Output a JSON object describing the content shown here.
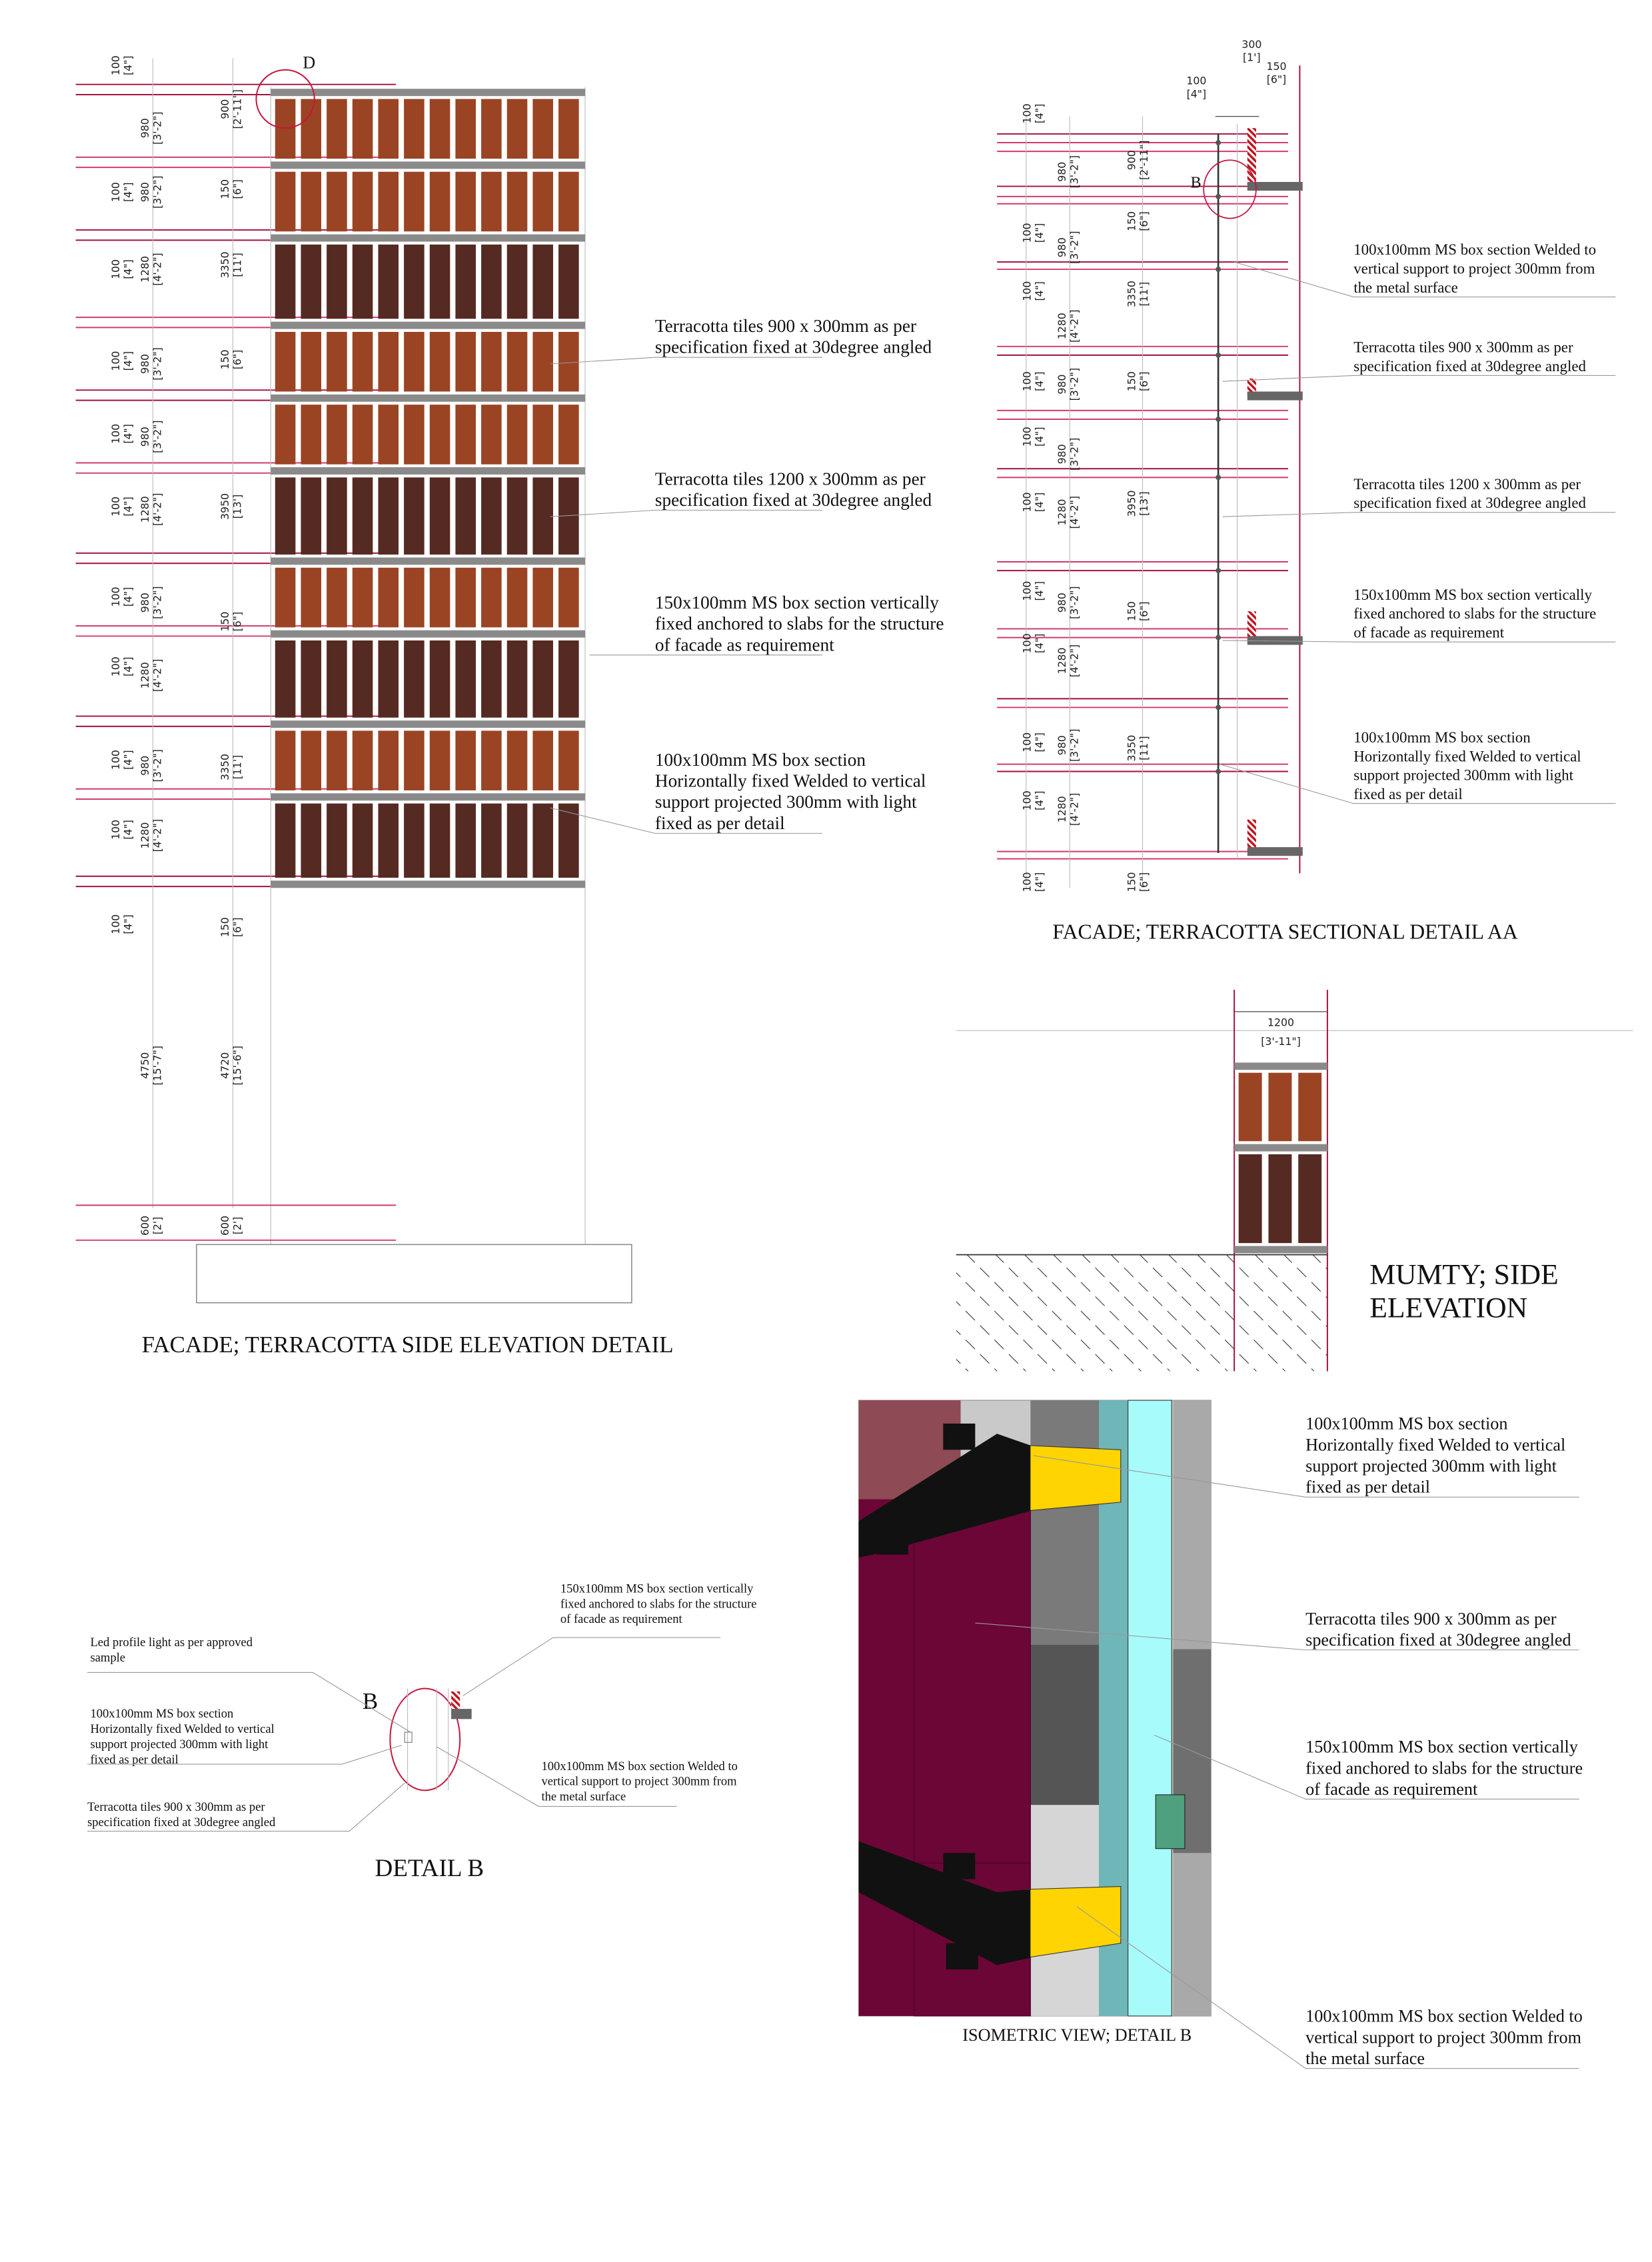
{
  "facade_elevation": {
    "title": "FACADE; TERRACOTTA SIDE ELEVATION DETAIL",
    "detail_marker": "D",
    "tile_colors": {
      "light": "#9a4424",
      "dark": "#552a22",
      "rail": "#8a8a8a"
    },
    "callouts": [
      [
        "Terracotta tiles  900 x 300mm as per",
        "specification fixed at 30degree angled"
      ],
      [
        "Terracotta tiles  1200 x 300mm as per",
        "specification fixed at 30degree angled"
      ],
      [
        "150x100mm MS box section vertically",
        "fixed anchored to slabs for the structure",
        "of facade as requirement"
      ],
      [
        "100x100mm MS box section",
        "Horizontally fixed Welded to vertical",
        "support projected 300mm with light",
        "fixed as per detail"
      ]
    ],
    "dims_col_a": [
      [
        "100",
        "[4\"]"
      ],
      [
        "100",
        "[4\"]"
      ],
      [
        "100",
        "[4\"]"
      ],
      [
        "100",
        "[4\"]"
      ],
      [
        "100",
        "[4\"]"
      ],
      [
        "100",
        "[4\"]"
      ],
      [
        "100",
        "[4\"]"
      ],
      [
        "100",
        "[4\"]"
      ],
      [
        "100",
        "[4\"]"
      ],
      [
        "100",
        "[4\"]"
      ],
      [
        "100",
        "[4\"]"
      ]
    ],
    "dims_col_b": [
      [
        "980",
        "[3'-2\"]"
      ],
      [
        "980",
        "[3'-2\"]"
      ],
      [
        "1280",
        "[4'-2\"]"
      ],
      [
        "980",
        "[3'-2\"]"
      ],
      [
        "980",
        "[3'-2\"]"
      ],
      [
        "1280",
        "[4'-2\"]"
      ],
      [
        "980",
        "[3'-2\"]"
      ],
      [
        "1280",
        "[4'-2\"]"
      ],
      [
        "980",
        "[3'-2\"]"
      ],
      [
        "1280",
        "[4'-2\"]"
      ],
      [
        "4750",
        "[15'-7\"]"
      ],
      [
        "600",
        "[2']"
      ]
    ],
    "dims_col_c": [
      [
        "900",
        "[2'-11\"]"
      ],
      [
        "150",
        "[6\"]"
      ],
      [
        "3350",
        "[11']"
      ],
      [
        "150",
        "[6\"]"
      ],
      [
        "3950",
        "[13']"
      ],
      [
        "150",
        "[6\"]"
      ],
      [
        "3350",
        "[11']"
      ],
      [
        "150",
        "[6\"]"
      ],
      [
        "4720",
        "[15'-6\"]"
      ],
      [
        "600",
        "[2']"
      ]
    ]
  },
  "section_aa": {
    "title": "FACADE; TERRACOTTA SECTIONAL DETAIL AA",
    "detail_marker": "B",
    "top_dims": [
      [
        "100",
        "[4\"]"
      ],
      [
        "300",
        "[1']"
      ],
      [
        "150",
        "[6\"]"
      ]
    ],
    "callouts": [
      [
        "100x100mm MS box section Welded to",
        "vertical support to project 300mm from",
        "the metal surface"
      ],
      [
        "Terracotta tiles  900 x 300mm as per",
        "specification fixed at 30degree angled"
      ],
      [
        "Terracotta tiles  1200 x 300mm as per",
        "specification fixed at 30degree angled"
      ],
      [
        "150x100mm MS box section vertically",
        "fixed anchored to slabs for the structure",
        "of facade as requirement"
      ],
      [
        "100x100mm MS box section",
        "Horizontally fixed Welded to vertical",
        "support projected 300mm with light",
        "fixed as per detail"
      ]
    ],
    "dims_col_a": [
      [
        "100",
        "[4\"]"
      ],
      [
        "100",
        "[4\"]"
      ],
      [
        "100",
        "[4\"]"
      ],
      [
        "100",
        "[4\"]"
      ],
      [
        "100",
        "[4\"]"
      ],
      [
        "100",
        "[4\"]"
      ],
      [
        "100",
        "[4\"]"
      ],
      [
        "100",
        "[4\"]"
      ],
      [
        "100",
        "[4\"]"
      ],
      [
        "100",
        "[4\"]"
      ],
      [
        "100",
        "[4\"]"
      ]
    ],
    "dims_col_b": [
      [
        "980",
        "[3'-2\"]"
      ],
      [
        "980",
        "[3'-2\"]"
      ],
      [
        "1280",
        "[4'-2\"]"
      ],
      [
        "980",
        "[3'-2\"]"
      ],
      [
        "980",
        "[3'-2\"]"
      ],
      [
        "1280",
        "[4'-2\"]"
      ],
      [
        "980",
        "[3'-2\"]"
      ],
      [
        "1280",
        "[4'-2\"]"
      ],
      [
        "980",
        "[3'-2\"]"
      ],
      [
        "1280",
        "[4'-2\"]"
      ]
    ],
    "dims_col_c": [
      [
        "900",
        "[2'-11\"]"
      ],
      [
        "150",
        "[6\"]"
      ],
      [
        "3350",
        "[11']"
      ],
      [
        "150",
        "[6\"]"
      ],
      [
        "3950",
        "[13']"
      ],
      [
        "150",
        "[6\"]"
      ],
      [
        "3350",
        "[11']"
      ],
      [
        "150",
        "[6\"]"
      ]
    ]
  },
  "mumty": {
    "title_lines": [
      "MUMTY; SIDE",
      "ELEVATION"
    ],
    "width_dim": [
      "1200",
      "[3'-11\"]"
    ]
  },
  "detail_b": {
    "title": "DETAIL B",
    "marker": "B",
    "callouts": [
      [
        "150x100mm MS box section vertically",
        "fixed anchored to slabs for the structure",
        "of facade as requirement"
      ],
      [
        "Led profile light as per approved",
        "sample"
      ],
      [
        "100x100mm MS box section",
        "Horizontally fixed Welded to vertical",
        "support projected 300mm with light",
        "fixed as per detail"
      ],
      [
        "Terracotta tiles  900 x 300mm as per",
        "specification fixed at 30degree angled"
      ],
      [
        "100x100mm MS box section Welded to",
        "vertical support to project 300mm from",
        "the metal surface"
      ]
    ]
  },
  "isometric": {
    "title": "ISOMETRIC VIEW; DETAIL B",
    "colors": {
      "panel": "#6b0636",
      "bracket": "#ffd400",
      "column": "#a8fbfb",
      "arm": "#111111"
    },
    "callouts": [
      [
        "100x100mm MS box section",
        "Horizontally fixed Welded to vertical",
        "support projected 300mm with light",
        "fixed as per detail"
      ],
      [
        "Terracotta tiles  900 x 300mm as per",
        "specification fixed at 30degree angled"
      ],
      [
        "150x100mm MS box section vertically",
        "fixed anchored to slabs for the structure",
        "of facade as requirement"
      ],
      [
        "100x100mm MS box section Welded to",
        "vertical support to project 300mm from",
        "the metal surface"
      ]
    ]
  }
}
